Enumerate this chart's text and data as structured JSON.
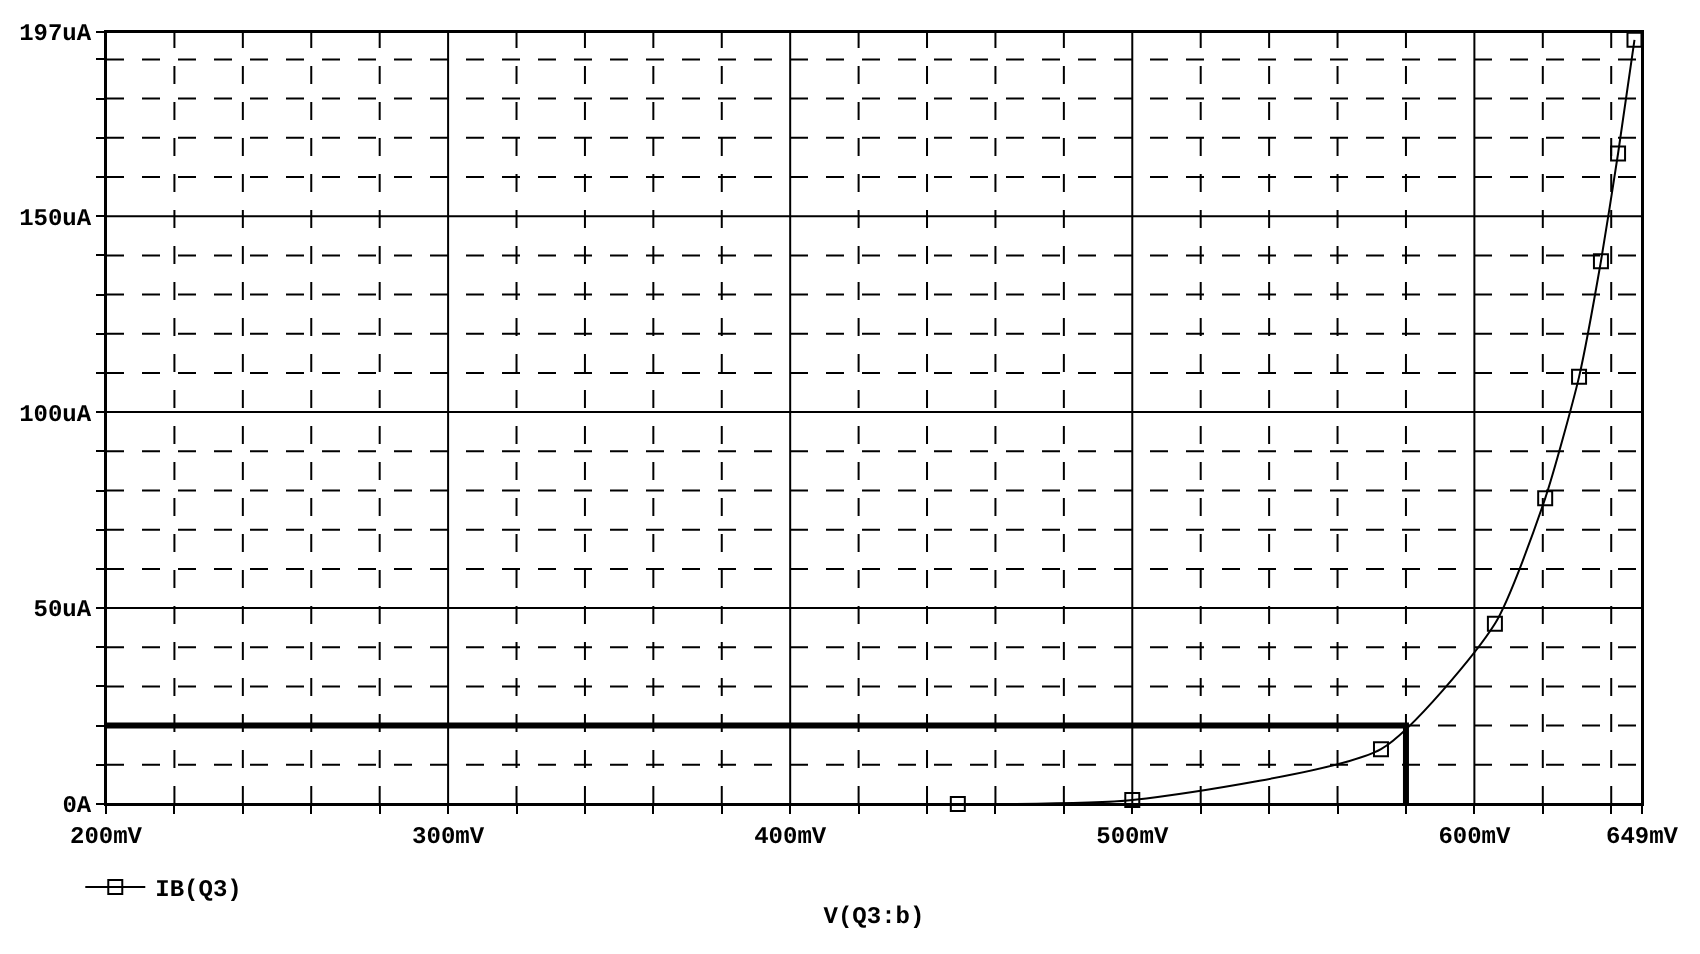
{
  "chart_data": {
    "type": "line",
    "xlabel": "V(Q3:b)",
    "series": [
      {
        "name": "IB(Q3)",
        "color": "#000000",
        "marker": "square",
        "x": [
          449,
          500,
          572.7,
          606,
          620.7,
          630.6,
          637,
          642,
          646.8
        ],
        "values": [
          0,
          1,
          14,
          46,
          78,
          109,
          138.5,
          166,
          195
        ]
      },
      {
        "color": "#000000",
        "marker": "none",
        "x": [
          200,
          580,
          580
        ],
        "values": [
          20,
          20,
          0
        ]
      }
    ],
    "xlim": [
      200,
      649
    ],
    "ylim": [
      0,
      197
    ],
    "xticks": [
      {
        "value": 200,
        "label": "200mV"
      },
      {
        "value": 220,
        "label": null
      },
      {
        "value": 240,
        "label": null
      },
      {
        "value": 260,
        "label": null
      },
      {
        "value": 280,
        "label": null
      },
      {
        "value": 300,
        "label": "300mV"
      },
      {
        "value": 320,
        "label": null
      },
      {
        "value": 340,
        "label": null
      },
      {
        "value": 360,
        "label": null
      },
      {
        "value": 380,
        "label": null
      },
      {
        "value": 400,
        "label": "400mV"
      },
      {
        "value": 420,
        "label": null
      },
      {
        "value": 440,
        "label": null
      },
      {
        "value": 460,
        "label": null
      },
      {
        "value": 480,
        "label": null
      },
      {
        "value": 500,
        "label": "500mV"
      },
      {
        "value": 520,
        "label": null
      },
      {
        "value": 540,
        "label": null
      },
      {
        "value": 560,
        "label": null
      },
      {
        "value": 580,
        "label": null
      },
      {
        "value": 600,
        "label": "600mV"
      },
      {
        "value": 620,
        "label": null
      },
      {
        "value": 640,
        "label": null
      },
      {
        "value": 649,
        "label": "649mV"
      }
    ],
    "yticks": [
      {
        "value": 0,
        "label": "0A"
      },
      {
        "value": 10,
        "label": null
      },
      {
        "value": 20,
        "label": null
      },
      {
        "value": 30,
        "label": null
      },
      {
        "value": 40,
        "label": null
      },
      {
        "value": 50,
        "label": "50uA"
      },
      {
        "value": 60,
        "label": null
      },
      {
        "value": 70,
        "label": null
      },
      {
        "value": 80,
        "label": null
      },
      {
        "value": 90,
        "label": null
      },
      {
        "value": 100,
        "label": "100uA"
      },
      {
        "value": 110,
        "label": null
      },
      {
        "value": 120,
        "label": null
      },
      {
        "value": 130,
        "label": null
      },
      {
        "value": 140,
        "label": null
      },
      {
        "value": 150,
        "label": "150uA"
      },
      {
        "value": 160,
        "label": null
      },
      {
        "value": 170,
        "label": null
      },
      {
        "value": 180,
        "label": null
      },
      {
        "value": 190,
        "label": null
      },
      {
        "value": 197,
        "label": "197uA"
      }
    ],
    "grid": true,
    "legend": "bottom left"
  }
}
